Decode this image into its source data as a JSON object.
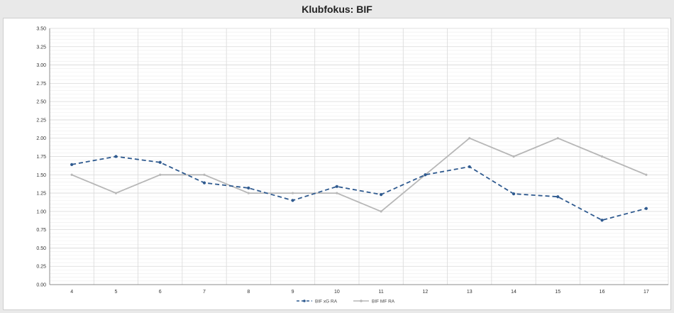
{
  "title": "Klubfokus:  BIF",
  "colors": {
    "series1": "#2f5a8f",
    "series2": "#b7b7b7",
    "grid": "#d9d9d9",
    "background": "#ffffff",
    "page": "#e9e9e9"
  },
  "chart_data": {
    "type": "line",
    "title": "Klubfokus:  BIF",
    "x": [
      4,
      5,
      6,
      7,
      8,
      9,
      10,
      11,
      12,
      13,
      14,
      15,
      16,
      17
    ],
    "x_tick_labels": [
      "4",
      "5",
      "6",
      "7",
      "8",
      "9",
      "10",
      "11",
      "12",
      "13",
      "14",
      "15",
      "16",
      "17"
    ],
    "ylim": [
      0,
      3.5
    ],
    "y_ticks": [
      0,
      0.25,
      0.5,
      0.75,
      1.0,
      1.25,
      1.5,
      1.75,
      2.0,
      2.25,
      2.5,
      2.75,
      3.0,
      3.25,
      3.5
    ],
    "y_tick_labels": [
      "0.00",
      "0.25",
      "0.50",
      "0.75",
      "1.00",
      "1.25",
      "1.50",
      "1.75",
      "2.00",
      "2.25",
      "2.50",
      "2.75",
      "3.00",
      "3.25",
      "3.50"
    ],
    "grid": true,
    "legend_position": "bottom",
    "series": [
      {
        "name": "BIF xG RA",
        "style": "dashed",
        "color": "#2f5a8f",
        "values": [
          1.64,
          1.75,
          1.67,
          1.39,
          1.32,
          1.15,
          1.34,
          1.23,
          1.5,
          1.61,
          1.24,
          1.2,
          0.88,
          1.04
        ]
      },
      {
        "name": "BIF MF RA",
        "style": "solid",
        "color": "#b7b7b7",
        "values": [
          1.5,
          1.25,
          1.5,
          1.5,
          1.25,
          1.25,
          1.25,
          1.0,
          1.5,
          2.0,
          1.75,
          2.0,
          1.75,
          1.5
        ]
      }
    ]
  }
}
